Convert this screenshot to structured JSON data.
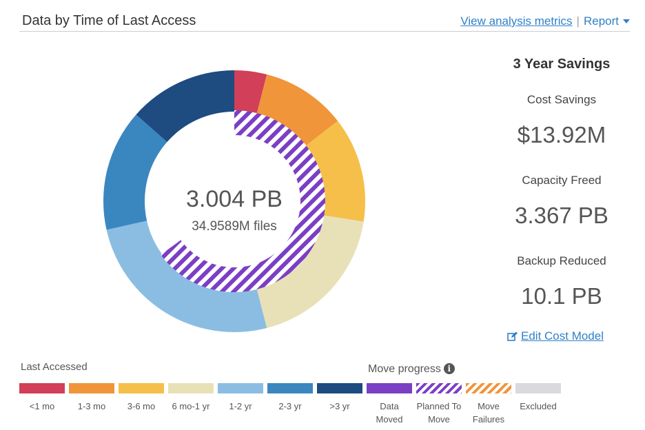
{
  "header": {
    "title": "Data by Time of Last Access",
    "view_metrics_label": "View analysis metrics",
    "separator": "|",
    "report_label": "Report"
  },
  "chart_data": {
    "type": "pie",
    "categories": [
      "<1 mo",
      "1-3 mo",
      "3-6 mo",
      "6 mo-1 yr",
      "1-2 yr",
      "2-3 yr",
      ">3 yr"
    ],
    "values": [
      4,
      10.5,
      13,
      18.5,
      25.5,
      15,
      13.5
    ],
    "colors": [
      "#d13f58",
      "#f0953a",
      "#f5bf4a",
      "#e8e1b8",
      "#8bbde2",
      "#3a87c0",
      "#1e4b80"
    ],
    "inner_series": [
      {
        "name": "Data Moved",
        "value": 0,
        "color": "#7b3fc4"
      },
      {
        "name": "Planned To Move",
        "value": 65,
        "color": "#7b3fc4",
        "pattern": "hatched"
      },
      {
        "name": "Move Failures",
        "value": 0,
        "color": "#f0953a",
        "pattern": "hatched"
      }
    ],
    "center_value": "3.004 PB",
    "center_subtitle": "34.9589M files"
  },
  "savings": {
    "title": "3 Year Savings",
    "metrics": [
      {
        "label": "Cost Savings",
        "value": "$13.92M"
      },
      {
        "label": "Capacity Freed",
        "value": "3.367 PB"
      },
      {
        "label": "Backup Reduced",
        "value": "10.1 PB"
      }
    ],
    "edit_label": "Edit Cost Model"
  },
  "legend": {
    "last_accessed_title": "Last Accessed",
    "move_progress_title": "Move progress",
    "info_glyph": "i",
    "items": [
      {
        "label": "<1 mo",
        "color": "#d13f58"
      },
      {
        "label": "1-3 mo",
        "color": "#f0953a"
      },
      {
        "label": "3-6 mo",
        "color": "#f5bf4a"
      },
      {
        "label": "6 mo-1 yr",
        "color": "#e8e1b8"
      },
      {
        "label": "1-2 yr",
        "color": "#8bbde2"
      },
      {
        "label": "2-3 yr",
        "color": "#3a87c0"
      },
      {
        "label": ">3 yr",
        "color": "#1e4b80"
      },
      {
        "label": "Data Moved",
        "color": "#7b3fc4"
      },
      {
        "label": "Planned To Move",
        "color": "#7b3fc4",
        "pattern": "hatched"
      },
      {
        "label": "Move Failures",
        "color": "#f0953a",
        "pattern": "hatched"
      },
      {
        "label": "Excluded",
        "color": "#d9d9de"
      }
    ]
  }
}
